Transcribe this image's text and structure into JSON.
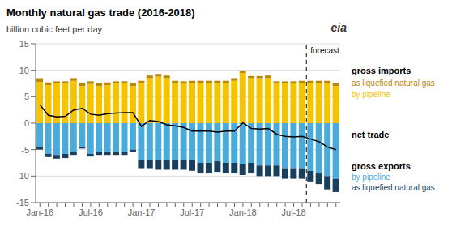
{
  "chart_data": {
    "type": "bar",
    "title": "Monthly natural gas trade (2016-2018)",
    "ylabel": "billion cubic feet per day",
    "categories": [
      "Jan-16",
      null,
      null,
      null,
      null,
      null,
      "Jul-16",
      null,
      null,
      null,
      null,
      null,
      "Jan-17",
      null,
      null,
      null,
      null,
      null,
      "Jul-17",
      null,
      null,
      null,
      null,
      null,
      "Jan-18",
      null,
      null,
      null,
      null,
      null,
      "Jul-18",
      null,
      null,
      null,
      null,
      null
    ],
    "series": [
      {
        "name": "by pipeline",
        "type": "bar",
        "color": "#F5C400",
        "values": [
          7.8,
          7.2,
          7.5,
          7.5,
          8.0,
          7.0,
          7.4,
          7.0,
          7.2,
          7.5,
          7.5,
          7.0,
          7.5,
          8.5,
          8.8,
          8.5,
          7.5,
          7.5,
          7.5,
          7.5,
          7.5,
          7.5,
          7.5,
          8.0,
          9.5,
          8.5,
          8.5,
          8.5,
          7.5,
          7.5,
          7.5,
          7.5,
          7.5,
          7.5,
          7.5,
          7.0
        ]
      },
      {
        "name": "as liquefied natural gas",
        "type": "bar",
        "color": "#B8860B",
        "values": [
          0.7,
          0.5,
          0.4,
          0.4,
          0.5,
          0.6,
          0.5,
          0.5,
          0.5,
          0.4,
          0.4,
          0.5,
          0.5,
          0.5,
          0.5,
          0.5,
          0.5,
          0.4,
          0.5,
          0.5,
          0.5,
          0.5,
          0.5,
          0.5,
          0.4,
          0.4,
          0.4,
          0.5,
          0.4,
          0.4,
          0.4,
          0.5,
          0.5,
          0.5,
          0.5,
          0.5
        ]
      },
      {
        "name": "by pipeline",
        "type": "bar",
        "color": "#4AABDB",
        "values": [
          -4.5,
          -5.8,
          -6.0,
          -5.8,
          -5.5,
          -4.5,
          -5.8,
          -5.5,
          -5.5,
          -5.5,
          -5.5,
          -5.0,
          -7.0,
          -7.0,
          -7.0,
          -7.0,
          -7.0,
          -7.0,
          -7.0,
          -7.5,
          -7.5,
          -7.2,
          -7.5,
          -7.5,
          -7.8,
          -7.5,
          -8.0,
          -8.0,
          -8.0,
          -8.5,
          -8.5,
          -8.5,
          -9.0,
          -9.5,
          -10.0,
          -10.5
        ]
      },
      {
        "name": "as liquefied natural gas",
        "type": "bar",
        "color": "#1A3F5C",
        "values": [
          -0.5,
          -0.6,
          -0.7,
          -0.8,
          -0.5,
          -0.3,
          -0.5,
          -0.5,
          -0.5,
          -0.5,
          -0.5,
          -0.5,
          -1.5,
          -1.5,
          -1.8,
          -1.8,
          -1.8,
          -1.8,
          -2.0,
          -2.0,
          -2.0,
          -2.0,
          -2.0,
          -2.0,
          -2.0,
          -2.0,
          -2.0,
          -2.0,
          -2.0,
          -2.0,
          -2.0,
          -2.0,
          -2.0,
          -2.0,
          -2.5,
          -2.5
        ]
      },
      {
        "name": "net trade",
        "type": "line",
        "color": "#000000",
        "values": [
          3.5,
          1.5,
          1.2,
          1.3,
          2.5,
          2.8,
          1.7,
          1.5,
          1.8,
          1.9,
          2.0,
          2.0,
          -0.6,
          0.5,
          0.3,
          -0.3,
          -0.5,
          -0.8,
          -1.5,
          -1.5,
          -1.5,
          -1.7,
          -1.5,
          -1.5,
          0.1,
          -1.0,
          -1.1,
          -1.0,
          -2.1,
          -2.5,
          -2.6,
          -2.5,
          -3.0,
          -3.5,
          -4.5,
          -5.0
        ]
      }
    ],
    "stacked": true,
    "ylim": [
      -15,
      15
    ],
    "yticks": [
      -15,
      -10,
      -5,
      0,
      5,
      10,
      15
    ],
    "grid": true,
    "legend": "right",
    "vline": {
      "x": 32,
      "label": "forecast",
      "line_style": "dashed"
    },
    "annotations": [
      "gross imports",
      "gross exports",
      "eia"
    ]
  }
}
